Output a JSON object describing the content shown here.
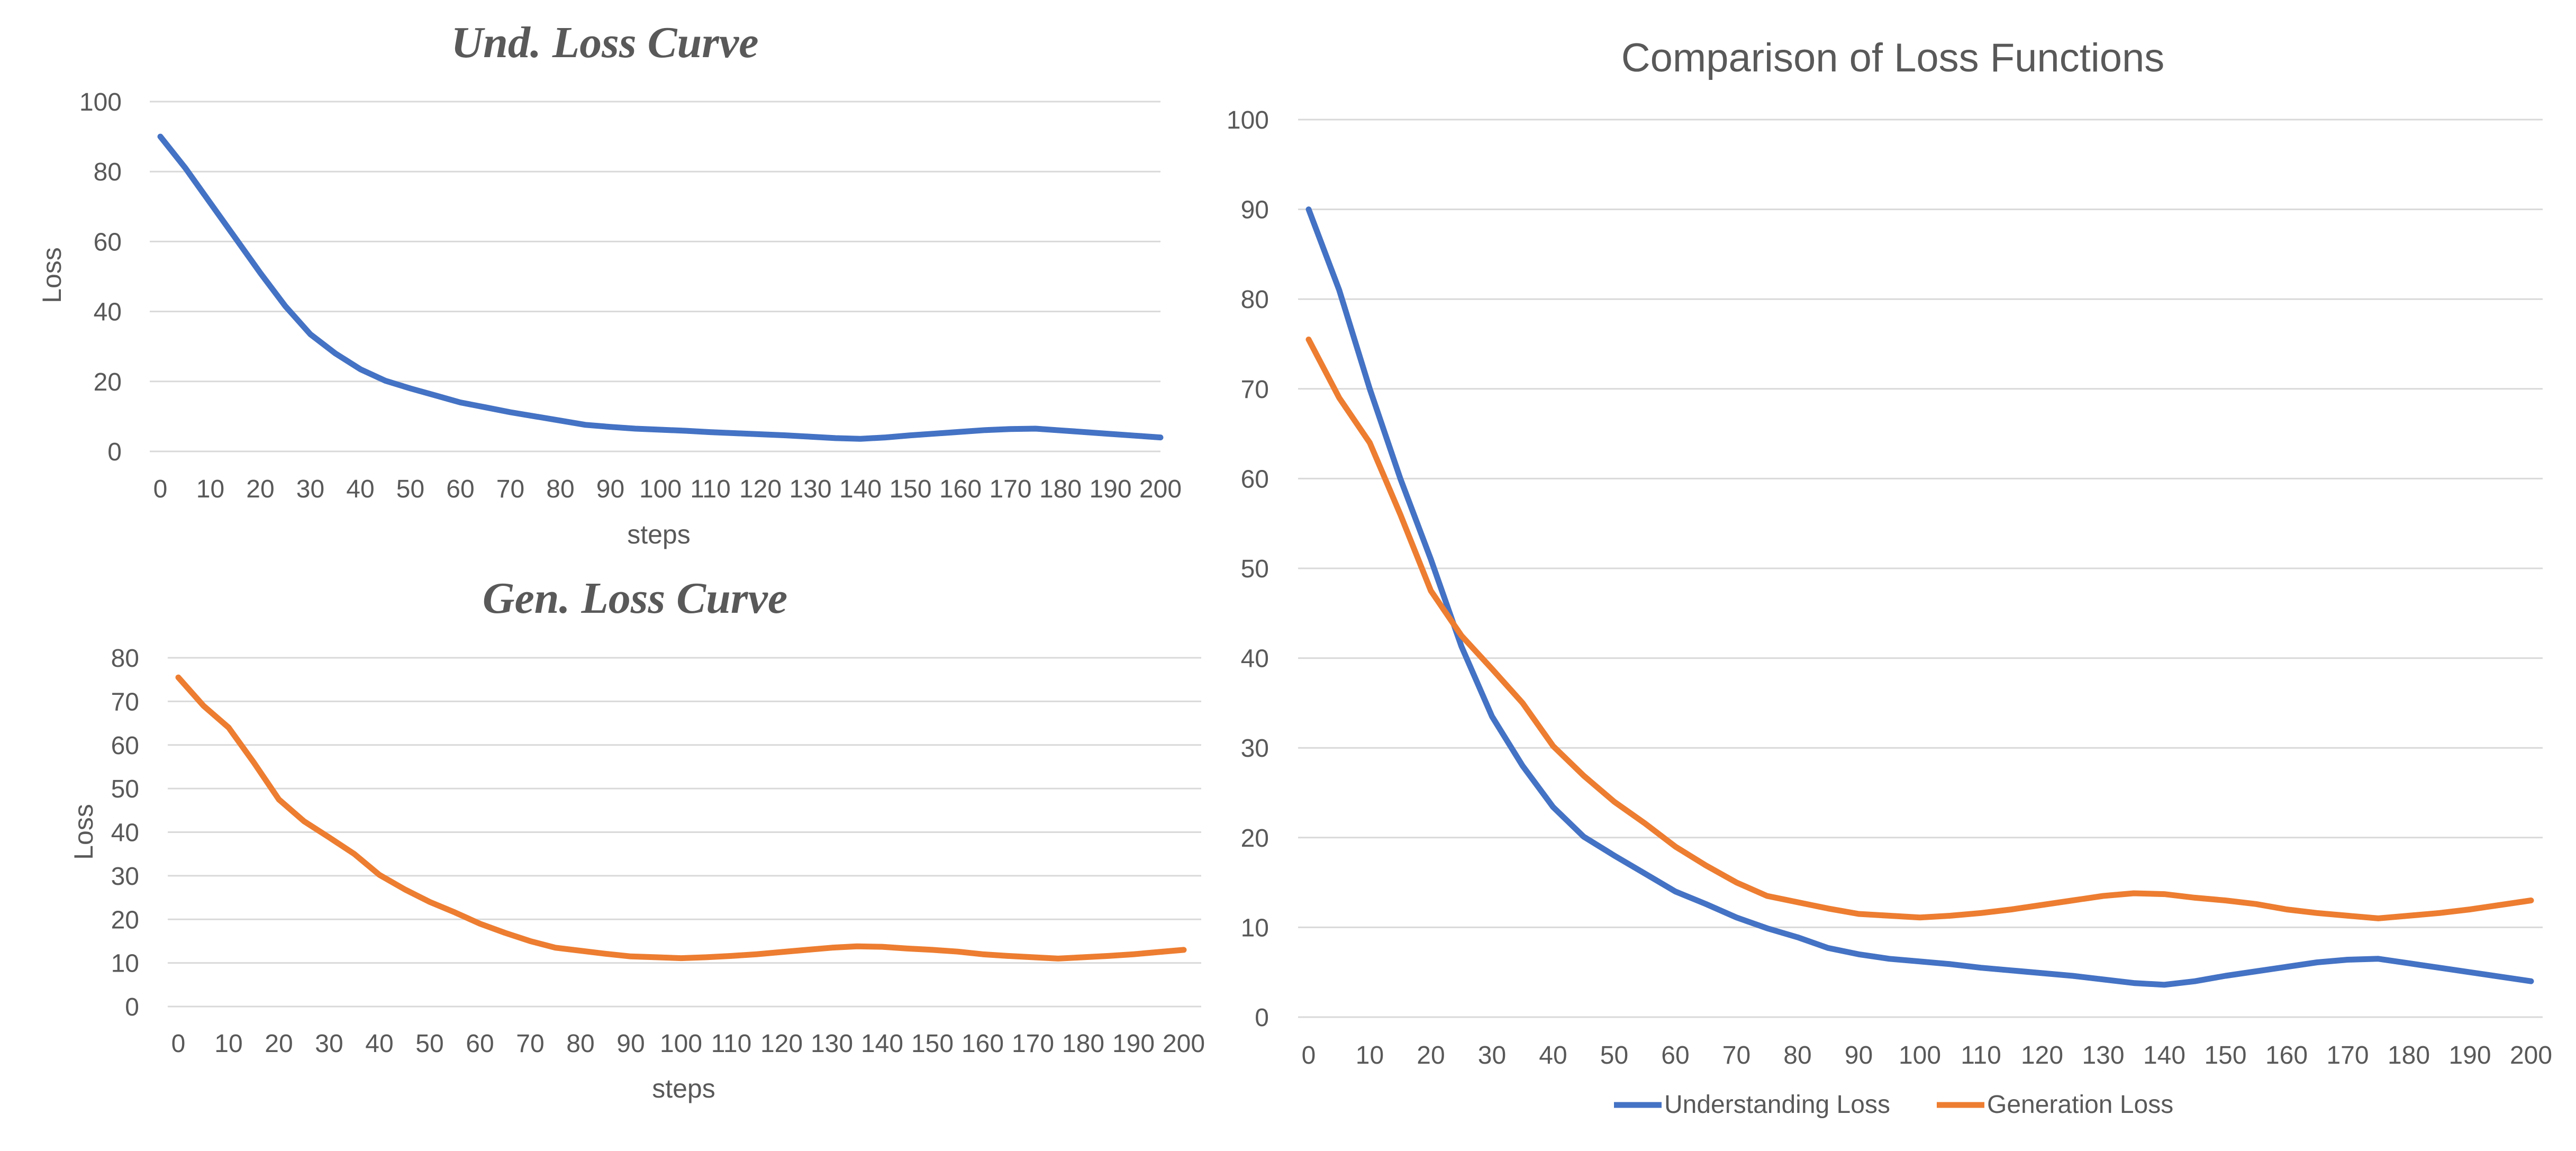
{
  "chart_data": [
    {
      "id": "und",
      "type": "line",
      "title": "Und. Loss Curve",
      "xlabel": "steps",
      "ylabel": "Loss",
      "ylim": [
        0,
        100
      ],
      "yticks": [
        0,
        20,
        40,
        60,
        80,
        100
      ],
      "categories": [
        "0",
        "10",
        "20",
        "30",
        "40",
        "50",
        "60",
        "70",
        "80",
        "90",
        "100",
        "110",
        "120",
        "130",
        "140",
        "150",
        "160",
        "170",
        "180",
        "190",
        "200"
      ],
      "grid": true,
      "series": [
        {
          "name": "Understanding Loss",
          "color": "#4472C4",
          "x": [
            0,
            5,
            10,
            15,
            20,
            25,
            30,
            35,
            40,
            45,
            50,
            55,
            60,
            65,
            70,
            75,
            80,
            85,
            90,
            95,
            100,
            105,
            110,
            115,
            120,
            125,
            130,
            135,
            140,
            145,
            150,
            155,
            160,
            165,
            170,
            175,
            180,
            185,
            190,
            195,
            200
          ],
          "values": [
            90,
            81,
            71,
            61,
            51,
            41.5,
            33.5,
            28,
            23.5,
            20.2,
            18,
            16,
            14,
            12.6,
            11.2,
            10,
            8.8,
            7.6,
            7,
            6.5,
            6.2,
            5.9,
            5.5,
            5.2,
            4.9,
            4.6,
            4.2,
            3.8,
            3.6,
            4,
            4.6,
            5.1,
            5.6,
            6.1,
            6.4,
            6.5,
            6,
            5.5,
            5,
            4.5,
            4
          ]
        }
      ]
    },
    {
      "id": "gen",
      "type": "line",
      "title": "Gen. Loss Curve",
      "xlabel": "steps",
      "ylabel": "Loss",
      "ylim": [
        0,
        80
      ],
      "yticks": [
        0,
        10,
        20,
        30,
        40,
        50,
        60,
        70,
        80
      ],
      "categories": [
        "0",
        "10",
        "20",
        "30",
        "40",
        "50",
        "60",
        "70",
        "80",
        "90",
        "100",
        "110",
        "120",
        "130",
        "140",
        "150",
        "160",
        "170",
        "180",
        "190",
        "200"
      ],
      "grid": true,
      "series": [
        {
          "name": "Generation Loss",
          "color": "#ED7D31",
          "x": [
            0,
            5,
            10,
            15,
            20,
            25,
            30,
            35,
            40,
            45,
            50,
            55,
            60,
            65,
            70,
            75,
            80,
            85,
            90,
            95,
            100,
            105,
            110,
            115,
            120,
            125,
            130,
            135,
            140,
            145,
            150,
            155,
            160,
            165,
            170,
            175,
            180,
            185,
            190,
            195,
            200
          ],
          "values": [
            75.5,
            69,
            64,
            56,
            47.5,
            42.5,
            38.8,
            35,
            30.2,
            26.9,
            24,
            21.6,
            19,
            16.9,
            15,
            13.5,
            12.8,
            12.1,
            11.5,
            11.3,
            11.1,
            11.3,
            11.6,
            12,
            12.5,
            13,
            13.5,
            13.8,
            13.7,
            13.3,
            13,
            12.6,
            12,
            11.6,
            11.3,
            11,
            11.3,
            11.6,
            12,
            12.5,
            13
          ]
        }
      ]
    },
    {
      "id": "cmp",
      "type": "line",
      "title": "Comparison of Loss Functions",
      "xlabel": "",
      "ylabel": "",
      "ylim": [
        0,
        100
      ],
      "yticks": [
        0,
        10,
        20,
        30,
        40,
        50,
        60,
        70,
        80,
        90,
        100
      ],
      "categories": [
        "0",
        "10",
        "20",
        "30",
        "40",
        "50",
        "60",
        "70",
        "80",
        "90",
        "100",
        "110",
        "120",
        "130",
        "140",
        "150",
        "160",
        "170",
        "180",
        "190",
        "200"
      ],
      "grid": true,
      "legend": "bottom",
      "series": [
        {
          "name": "Understanding Loss",
          "color": "#4472C4",
          "x": [
            0,
            5,
            10,
            15,
            20,
            25,
            30,
            35,
            40,
            45,
            50,
            55,
            60,
            65,
            70,
            75,
            80,
            85,
            90,
            95,
            100,
            105,
            110,
            115,
            120,
            125,
            130,
            135,
            140,
            145,
            150,
            155,
            160,
            165,
            170,
            175,
            180,
            185,
            190,
            195,
            200
          ],
          "values": [
            90,
            81,
            70,
            60,
            51,
            41.3,
            33.5,
            28,
            23.4,
            20.1,
            18,
            16,
            14,
            12.6,
            11.1,
            9.9,
            8.9,
            7.7,
            7,
            6.5,
            6.2,
            5.9,
            5.5,
            5.2,
            4.9,
            4.6,
            4.2,
            3.8,
            3.6,
            4,
            4.6,
            5.1,
            5.6,
            6.1,
            6.4,
            6.5,
            6,
            5.5,
            5,
            4.5,
            4
          ]
        },
        {
          "name": "Generation Loss",
          "color": "#ED7D31",
          "x": [
            0,
            5,
            10,
            15,
            20,
            25,
            30,
            35,
            40,
            45,
            50,
            55,
            60,
            65,
            70,
            75,
            80,
            85,
            90,
            95,
            100,
            105,
            110,
            115,
            120,
            125,
            130,
            135,
            140,
            145,
            150,
            155,
            160,
            165,
            170,
            175,
            180,
            185,
            190,
            195,
            200
          ],
          "values": [
            75.5,
            69,
            64,
            56,
            47.5,
            42.5,
            38.8,
            35,
            30.2,
            26.9,
            24,
            21.6,
            19,
            16.9,
            15,
            13.5,
            12.8,
            12.1,
            11.5,
            11.3,
            11.1,
            11.3,
            11.6,
            12,
            12.5,
            13,
            13.5,
            13.8,
            13.7,
            13.3,
            13,
            12.6,
            12,
            11.6,
            11.3,
            11,
            11.3,
            11.6,
            12,
            12.5,
            13
          ]
        }
      ]
    }
  ]
}
